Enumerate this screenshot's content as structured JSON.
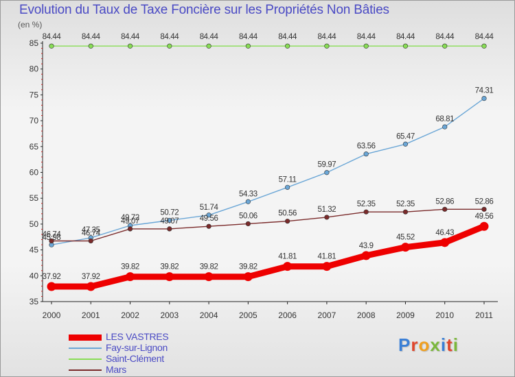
{
  "title": "Evolution du Taux de Taxe Foncière sur les Propriétés Non Bâties",
  "unit_label": "(en %)",
  "logo_text": "Proxiti",
  "chart_data": {
    "type": "line",
    "x": [
      "2000",
      "2001",
      "2002",
      "2003",
      "2004",
      "2005",
      "2006",
      "2007",
      "2008",
      "2009",
      "2010",
      "2011"
    ],
    "ylim": [
      35,
      85
    ],
    "yticks": [
      35,
      40,
      45,
      50,
      55,
      60,
      65,
      70,
      75,
      80,
      85
    ],
    "grid": false,
    "legend_position": "bottom-left",
    "series": [
      {
        "name": "LES VASTRES",
        "color": "#ee0000",
        "values": [
          37.92,
          37.92,
          39.82,
          39.82,
          39.82,
          39.82,
          41.81,
          41.81,
          43.9,
          45.52,
          46.43,
          49.56
        ],
        "labels": [
          "37.92",
          "37.92",
          "39.82",
          "39.82",
          "39.82",
          "39.82",
          "41.81",
          "41.81",
          "43.9",
          "45.52",
          "46.43",
          "49.56"
        ]
      },
      {
        "name": "Fay-sur-Lignon",
        "color": "#6aa6d6",
        "values": [
          45.98,
          47.35,
          49.72,
          50.72,
          51.74,
          54.33,
          57.11,
          59.97,
          63.56,
          65.47,
          68.81,
          74.31
        ],
        "labels": [
          "45.98",
          "47.35",
          "49.72",
          "50.72",
          "51.74",
          "54.33",
          "57.11",
          "59.97",
          "63.56",
          "65.47",
          "68.81",
          "74.31"
        ]
      },
      {
        "name": "Saint-Clément",
        "color": "#88dd55",
        "values": [
          84.44,
          84.44,
          84.44,
          84.44,
          84.44,
          84.44,
          84.44,
          84.44,
          84.44,
          84.44,
          84.44,
          84.44
        ],
        "labels": [
          "84.44",
          "84.44",
          "84.44",
          "84.44",
          "84.44",
          "84.44",
          "84.44",
          "84.44",
          "84.44",
          "84.44",
          "84.44",
          "84.44"
        ]
      },
      {
        "name": "Mars",
        "color": "#7a2a2a",
        "values": [
          46.74,
          46.74,
          49.07,
          49.07,
          49.56,
          50.06,
          50.56,
          51.32,
          52.35,
          52.35,
          52.86,
          52.86
        ],
        "labels": [
          "46.74",
          "46.74",
          "49.07",
          "49.07",
          "49.56",
          "50.06",
          "50.56",
          "51.32",
          "52.35",
          "52.35",
          "52.86",
          "52.86"
        ]
      }
    ]
  }
}
